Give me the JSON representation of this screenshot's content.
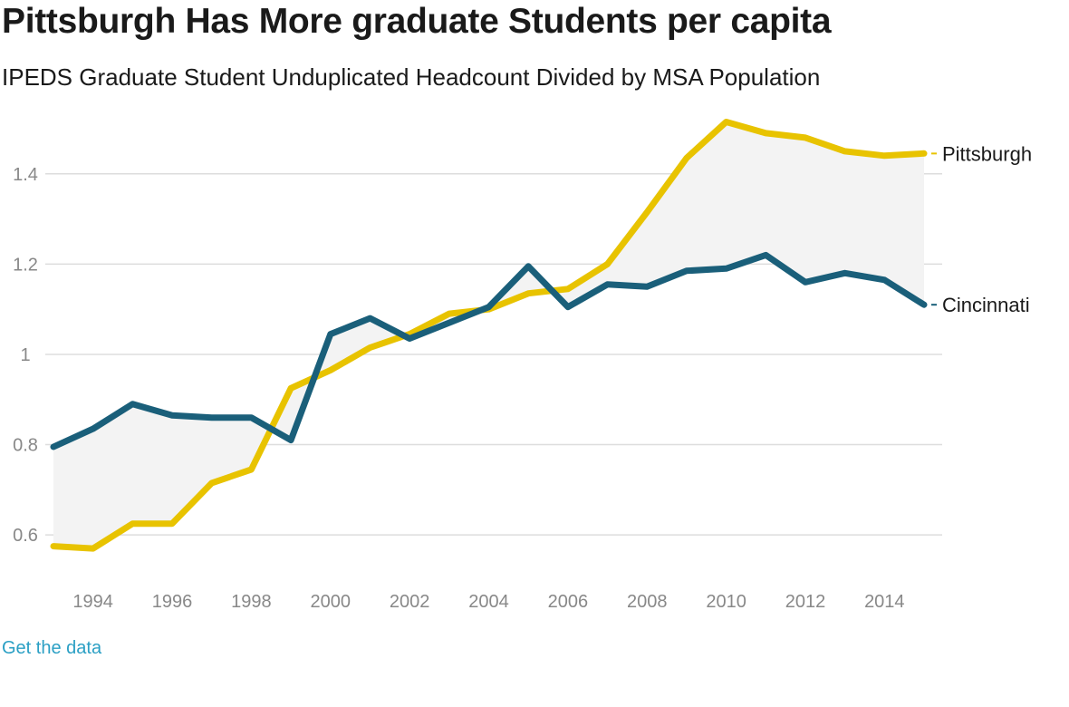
{
  "header": {
    "title": "Pittsburgh Has More graduate Students per capita",
    "subtitle": "IPEDS Graduate Student Unduplicated Headcount Divided by MSA Population"
  },
  "footer": {
    "link_label": "Get the data"
  },
  "colors": {
    "pittsburgh": "#e8c300",
    "cincinnati": "#1a5f7a",
    "area_fill": "#f3f3f3",
    "grid": "#dddddd",
    "tick_text": "#888888"
  },
  "chart_data": {
    "type": "line",
    "title": "Pittsburgh Has More graduate Students per capita",
    "subtitle": "IPEDS Graduate Student Unduplicated Headcount Divided by MSA Population",
    "xlabel": "",
    "ylabel": "",
    "xlim": [
      1993,
      2015
    ],
    "ylim": [
      0.52,
      1.52
    ],
    "grid": true,
    "x": [
      1993,
      1994,
      1995,
      1996,
      1997,
      1998,
      1999,
      2000,
      2001,
      2002,
      2003,
      2004,
      2005,
      2006,
      2007,
      2008,
      2009,
      2010,
      2011,
      2012,
      2013,
      2014,
      2015
    ],
    "x_ticks": [
      {
        "value": 1994,
        "label": "1994"
      },
      {
        "value": 1996,
        "label": "1996"
      },
      {
        "value": 1998,
        "label": "1998"
      },
      {
        "value": 2000,
        "label": "2000"
      },
      {
        "value": 2002,
        "label": "2002"
      },
      {
        "value": 2004,
        "label": "2004"
      },
      {
        "value": 2006,
        "label": "2006"
      },
      {
        "value": 2008,
        "label": "2008"
      },
      {
        "value": 2010,
        "label": "2010"
      },
      {
        "value": 2012,
        "label": "2012"
      },
      {
        "value": 2014,
        "label": "2014"
      }
    ],
    "y_ticks": [
      {
        "value": 0.6,
        "label": "0.6"
      },
      {
        "value": 0.8,
        "label": "0.8"
      },
      {
        "value": 1.0,
        "label": "1"
      },
      {
        "value": 1.2,
        "label": "1.2"
      },
      {
        "value": 1.4,
        "label": "1.4"
      }
    ],
    "shaded_between_series": true,
    "series": [
      {
        "name": "Pittsburgh",
        "color": "#e8c300",
        "values": [
          0.575,
          0.57,
          0.625,
          0.625,
          0.715,
          0.745,
          0.925,
          0.965,
          1.015,
          1.045,
          1.09,
          1.1,
          1.135,
          1.145,
          1.2,
          1.315,
          1.435,
          1.515,
          1.49,
          1.48,
          1.45,
          1.44,
          1.445
        ]
      },
      {
        "name": "Cincinnati",
        "color": "#1a5f7a",
        "values": [
          0.795,
          0.835,
          0.89,
          0.865,
          0.86,
          0.86,
          0.81,
          1.045,
          1.08,
          1.035,
          1.07,
          1.105,
          1.195,
          1.105,
          1.155,
          1.15,
          1.185,
          1.19,
          1.22,
          1.16,
          1.18,
          1.165,
          1.11
        ]
      }
    ]
  }
}
